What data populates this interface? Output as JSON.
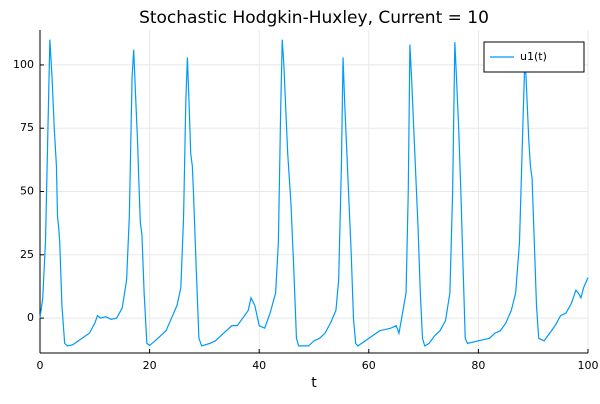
{
  "chart_data": {
    "type": "line",
    "title": "Stochastic Hodgkin-Huxley, Current = 10",
    "x_label": "t",
    "x": [
      0,
      0.5,
      1,
      1.4,
      1.8,
      2.2,
      2.6,
      3.0,
      3.2,
      3.4,
      3.6,
      4.0,
      4.5,
      5,
      6,
      7,
      8,
      9,
      10,
      10.5,
      11,
      12,
      13,
      14,
      15,
      15.8,
      16.3,
      16.8,
      17.1,
      17.4,
      17.8,
      18.1,
      18.3,
      18.6,
      19.0,
      19.5,
      20,
      21,
      22,
      23,
      24,
      25,
      25.7,
      26.2,
      26.6,
      26.9,
      27.2,
      27.5,
      27.8,
      28,
      28.5,
      29,
      29.5,
      31,
      32,
      33,
      34,
      35,
      36,
      37,
      38,
      38.5,
      39.2,
      40,
      41,
      42,
      43,
      43.5,
      43.9,
      44.2,
      44.5,
      44.8,
      45.2,
      45.5,
      45.8,
      46.3,
      46.8,
      47.2,
      49,
      50,
      51,
      52,
      53,
      54,
      54.5,
      55,
      55.3,
      55.6,
      56,
      56.5,
      56.8,
      57.2,
      57.6,
      58,
      60,
      62,
      64,
      65,
      65.5,
      66,
      66.8,
      67.2,
      67.5,
      67.8,
      68.2,
      68.6,
      69,
      69.4,
      69.8,
      70.2,
      71,
      72,
      73,
      74,
      74.8,
      75.3,
      75.7,
      76,
      76.4,
      76.8,
      77.2,
      77.6,
      78,
      80,
      81,
      82,
      83,
      84,
      85,
      86,
      86.8,
      87.5,
      88.1,
      88.5,
      88.8,
      89.2,
      89.5,
      89.8,
      90.2,
      90.6,
      91,
      92,
      93,
      94,
      95,
      96,
      97,
      97.8,
      98.2,
      98.7,
      99.2,
      99.6,
      100
    ],
    "series": [
      {
        "name": "u1(t)",
        "color": "#009af9",
        "values": [
          0,
          8,
          30,
          70,
          110,
          95,
          75,
          60,
          40,
          36,
          30,
          5,
          -10,
          -11,
          -10.5,
          -9,
          -7.5,
          -6,
          -2,
          1,
          0,
          0.5,
          -0.5,
          0,
          4,
          15,
          40,
          95,
          106,
          90,
          70,
          50,
          38,
          33,
          10,
          -10,
          -10.8,
          -9,
          -7,
          -5,
          0,
          5,
          12,
          40,
          85,
          103,
          85,
          65,
          60,
          50,
          20,
          -8,
          -11,
          -10,
          -9,
          -7,
          -5,
          -3,
          -3,
          0,
          3,
          8,
          5,
          -3,
          -4,
          2,
          10,
          30,
          80,
          110,
          100,
          85,
          65,
          55,
          45,
          20,
          -8,
          -11,
          -11,
          -9,
          -8,
          -6,
          -2,
          3,
          15,
          60,
          103,
          85,
          65,
          40,
          25,
          0,
          -10,
          -11,
          -8,
          -5,
          -4,
          -3,
          -6,
          0,
          10,
          50,
          108,
          95,
          75,
          55,
          35,
          10,
          -8,
          -11,
          -10,
          -7,
          -5,
          -1,
          10,
          50,
          109,
          95,
          75,
          50,
          20,
          -8,
          -10,
          -9,
          -8.5,
          -8,
          -6,
          -5,
          -2,
          3,
          10,
          30,
          75,
          104,
          90,
          70,
          60,
          55,
          30,
          5,
          -8,
          -9,
          -6,
          -3,
          1,
          2,
          6,
          11,
          10,
          8,
          12,
          14,
          16
        ]
      }
    ],
    "xlim": [
      0,
      100
    ],
    "ylim": [
      -13.8,
      113.8
    ],
    "xticks": [
      0,
      20,
      40,
      60,
      80,
      100
    ],
    "yticks": [
      0,
      25,
      50,
      75,
      100
    ],
    "grid": true,
    "legend": "top-right"
  }
}
